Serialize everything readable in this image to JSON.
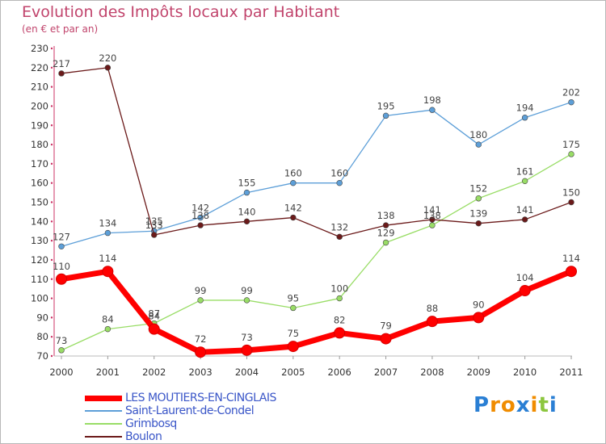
{
  "title": "Evolution des Impôts locaux par Habitant",
  "subtitle": "(en € et par an)",
  "logo": {
    "letters": [
      "P",
      "r",
      "o",
      "x",
      "i",
      "t",
      "i"
    ],
    "colors": [
      "#2a7fd4",
      "#f08c00",
      "#f08c00",
      "#2a7fd4",
      "#f08c00",
      "#8cc63e",
      "#2a7fd4"
    ]
  },
  "chart_data": {
    "type": "line",
    "x": [
      "2000",
      "2001",
      "2002",
      "2003",
      "2004",
      "2005",
      "2006",
      "2007",
      "2008",
      "2009",
      "2010",
      "2011"
    ],
    "ylim": [
      70,
      230
    ],
    "yticks": [
      70,
      80,
      90,
      100,
      110,
      120,
      130,
      140,
      150,
      160,
      170,
      180,
      190,
      200,
      210,
      220,
      230
    ],
    "grid": false,
    "legend_position": "bottom",
    "series": [
      {
        "name": "LES MOUTIERS-EN-CINGLAIS",
        "color": "#ff0000",
        "values": [
          110,
          114,
          84,
          72,
          73,
          75,
          82,
          79,
          88,
          90,
          104,
          114
        ],
        "emphasis": true
      },
      {
        "name": "Saint-Laurent-de-Condel",
        "color": "#5d9fd8",
        "values": [
          127,
          134,
          135,
          142,
          155,
          160,
          160,
          195,
          198,
          180,
          194,
          202
        ]
      },
      {
        "name": "Grimbosq",
        "color": "#99dd66",
        "values": [
          73,
          84,
          87,
          99,
          99,
          95,
          100,
          129,
          138,
          152,
          161,
          175
        ]
      },
      {
        "name": "Boulon",
        "color": "#6b1a1a",
        "values": [
          217,
          220,
          133,
          138,
          140,
          142,
          132,
          138,
          141,
          139,
          141,
          150
        ]
      }
    ]
  }
}
